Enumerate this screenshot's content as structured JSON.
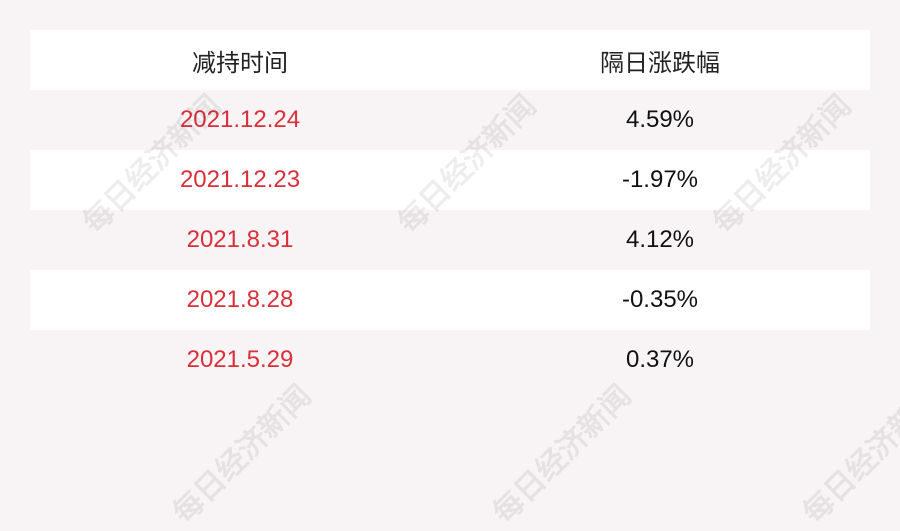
{
  "table": {
    "headers": [
      "减持时间",
      "隔日涨跌幅"
    ],
    "rows": [
      {
        "date": "2021.12.24",
        "change": "4.59%"
      },
      {
        "date": "2021.12.23",
        "change": "-1.97%"
      },
      {
        "date": "2021.8.31",
        "change": "4.12%"
      },
      {
        "date": "2021.8.28",
        "change": "-0.35%"
      },
      {
        "date": "2021.5.29",
        "change": "0.37%"
      }
    ]
  },
  "watermark": "每日经济新闻",
  "colors": {
    "date_text": "#d9303a",
    "background": "#f8f4f5"
  }
}
